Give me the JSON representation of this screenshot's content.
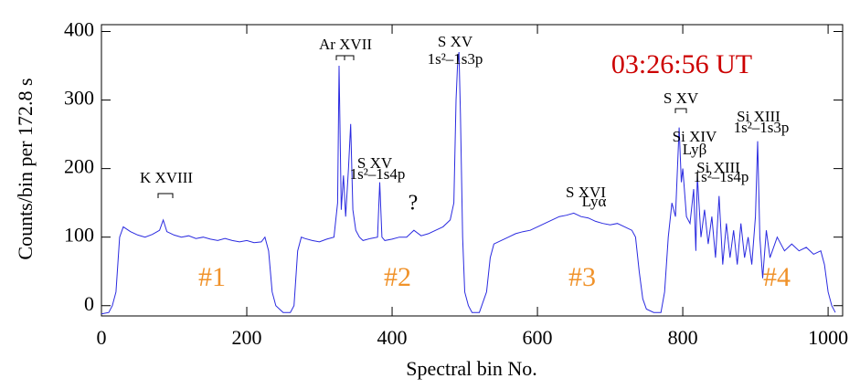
{
  "chart_data": {
    "type": "line",
    "xlabel": "Spectral bin No.",
    "ylabel": "Counts/bin per  172.8 s",
    "time_label": "03:26:56 UT",
    "region_labels": [
      "#1",
      "#2",
      "#3",
      "#4"
    ],
    "annotations": [
      "Ar XVII",
      "S XV",
      "1s²–1s3p",
      "K XVIII",
      "S XV",
      "1s²–1s4p",
      "?",
      "S XVI",
      "Lyα",
      "S XV",
      "Si XIV",
      "Lyβ",
      "Si XIII",
      "1s²–1s3p",
      "Si XIII",
      "1s²–1s4p"
    ],
    "xlim": [
      0,
      1020
    ],
    "ylim": [
      -15,
      410
    ],
    "xticks": [
      0,
      200,
      400,
      600,
      800,
      1000
    ],
    "yticks": [
      0,
      100,
      200,
      300,
      400
    ],
    "color": "#2a2ae0",
    "time_color": "#cc0000",
    "region_color": "#f0922a",
    "series": [
      {
        "name": "spectrum",
        "x": [
          0,
          10,
          15,
          20,
          25,
          30,
          40,
          50,
          60,
          70,
          80,
          85,
          90,
          100,
          110,
          120,
          130,
          140,
          150,
          160,
          170,
          180,
          190,
          200,
          210,
          220,
          225,
          230,
          235,
          240,
          250,
          260,
          265,
          270,
          275,
          280,
          290,
          300,
          310,
          320,
          325,
          327,
          330,
          333,
          336,
          340,
          343,
          346,
          350,
          355,
          360,
          370,
          380,
          383,
          386,
          390,
          400,
          410,
          420,
          430,
          440,
          450,
          460,
          470,
          480,
          485,
          488,
          490,
          492,
          494,
          497,
          500,
          505,
          510,
          520,
          530,
          535,
          540,
          550,
          560,
          570,
          580,
          590,
          600,
          610,
          620,
          630,
          640,
          650,
          660,
          670,
          680,
          690,
          700,
          710,
          720,
          730,
          735,
          740,
          745,
          750,
          760,
          770,
          775,
          780,
          785,
          790,
          795,
          798,
          800,
          805,
          810,
          815,
          818,
          820,
          825,
          830,
          835,
          840,
          845,
          850,
          855,
          860,
          865,
          870,
          875,
          880,
          885,
          890,
          895,
          900,
          903,
          906,
          910,
          915,
          920,
          930,
          940,
          950,
          960,
          970,
          980,
          990,
          995,
          1000,
          1005,
          1010
        ],
        "values": [
          -12,
          -10,
          0,
          20,
          100,
          115,
          108,
          103,
          100,
          104,
          110,
          125,
          108,
          103,
          100,
          102,
          98,
          100,
          97,
          95,
          98,
          95,
          93,
          95,
          92,
          93,
          100,
          80,
          20,
          0,
          -10,
          -10,
          0,
          80,
          100,
          98,
          95,
          93,
          97,
          100,
          150,
          350,
          140,
          190,
          130,
          200,
          265,
          140,
          110,
          100,
          95,
          98,
          100,
          180,
          100,
          95,
          97,
          100,
          100,
          110,
          102,
          105,
          110,
          115,
          125,
          150,
          300,
          350,
          370,
          280,
          100,
          20,
          0,
          -10,
          -10,
          20,
          70,
          90,
          95,
          100,
          105,
          108,
          110,
          115,
          120,
          125,
          130,
          132,
          135,
          130,
          128,
          123,
          120,
          118,
          120,
          115,
          110,
          100,
          50,
          10,
          -5,
          -10,
          -10,
          20,
          100,
          150,
          130,
          260,
          180,
          200,
          130,
          120,
          170,
          80,
          190,
          100,
          140,
          90,
          130,
          70,
          160,
          60,
          120,
          70,
          110,
          60,
          120,
          70,
          100,
          60,
          130,
          240,
          100,
          40,
          110,
          70,
          100,
          80,
          90,
          80,
          85,
          75,
          80,
          60,
          20,
          0,
          -10
        ]
      }
    ]
  }
}
